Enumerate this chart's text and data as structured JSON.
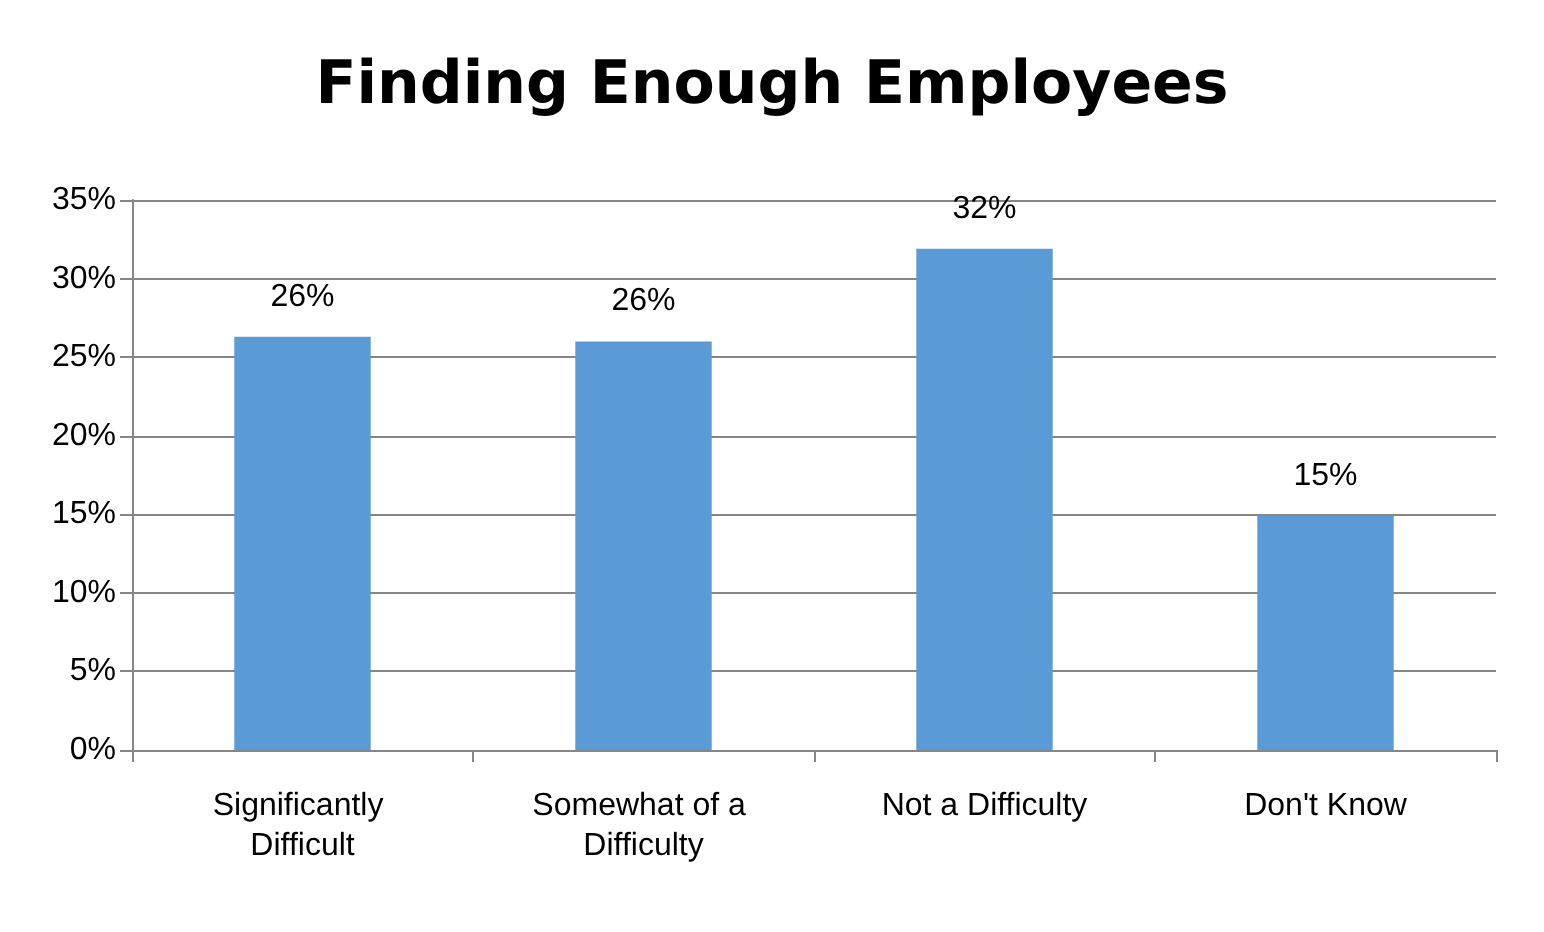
{
  "chart_data": {
    "type": "bar",
    "title": "Finding Enough Employees",
    "categories": [
      "Significantly Difficult",
      "Somewhat of a Difficulty",
      "Not a Difficulty",
      "Don't Know"
    ],
    "values": [
      26.3,
      26.0,
      31.9,
      14.9
    ],
    "value_labels": [
      "26%",
      "26%",
      "32%",
      "15%"
    ],
    "color": "#5b9bd5",
    "ylim": [
      0,
      35
    ],
    "yticks": [
      {
        "value": 0,
        "label": "0%"
      },
      {
        "value": 5,
        "label": "5%"
      },
      {
        "value": 10,
        "label": "10%"
      },
      {
        "value": 15,
        "label": "15%"
      },
      {
        "value": 20,
        "label": "20%"
      },
      {
        "value": 25,
        "label": "25%"
      },
      {
        "value": 30,
        "label": "30%"
      },
      {
        "value": 35,
        "label": "35%"
      }
    ],
    "grid": "y"
  }
}
